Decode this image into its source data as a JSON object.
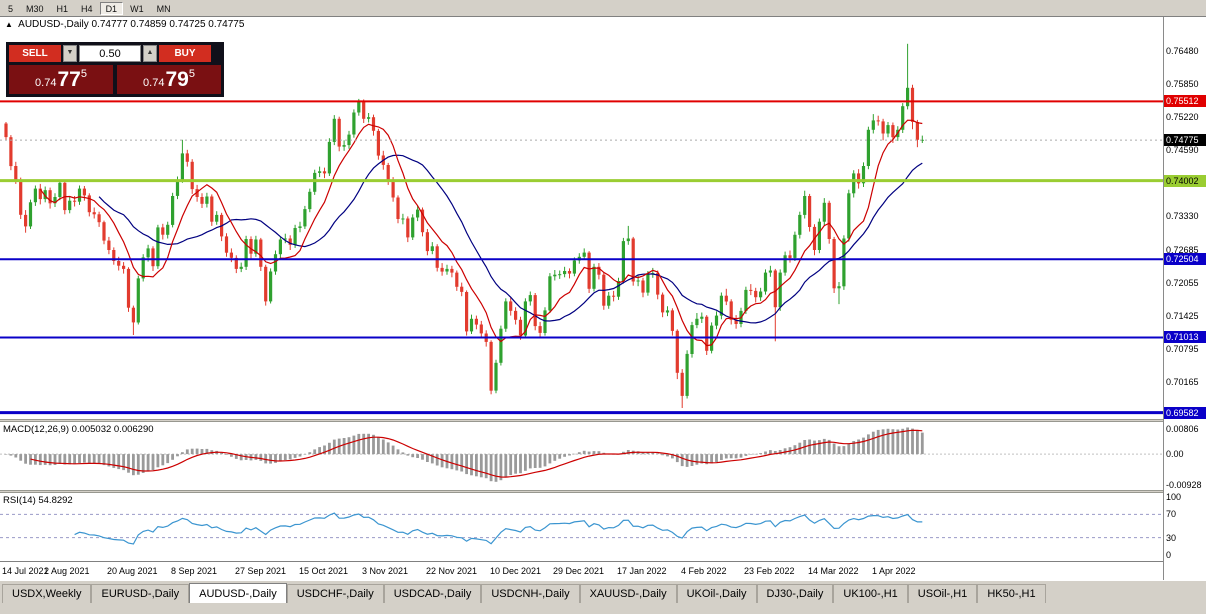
{
  "toolbar": {
    "timeframes": [
      {
        "label": "5",
        "active": false
      },
      {
        "label": "M30",
        "active": false
      },
      {
        "label": "H1",
        "active": false
      },
      {
        "label": "H4",
        "active": false
      },
      {
        "label": "D1",
        "active": true
      },
      {
        "label": "W1",
        "active": false
      },
      {
        "label": "MN",
        "active": false
      }
    ]
  },
  "trade_panel": {
    "sell_label": "SELL",
    "buy_label": "BUY",
    "volume": "0.50",
    "sell_price": {
      "prefix": "0.74",
      "big": "77",
      "sup": "5"
    },
    "buy_price": {
      "prefix": "0.74",
      "big": "79",
      "sup": "5"
    }
  },
  "colors": {
    "up": "#2fa12f",
    "down": "#e23b2e",
    "ma_fast": "#cc0000",
    "ma_slow": "#000080",
    "macd_hist": "#9a9a9a",
    "macd_signal": "#cc0000",
    "rsi": "#3b95d0",
    "level_dash": "#9a9ac8",
    "grid_dash": "#c0c0c0",
    "bid_line": "#aaaaaa"
  },
  "chart_data": {
    "type": "candlestick",
    "symbol_title": "AUDUSD-,Daily",
    "ohlc_header": "0.74777 0.74859 0.74725 0.74775",
    "scale": 10000,
    "ylim": [
      0.6946,
      0.7712
    ],
    "axis_ticks": [
      "0.76480",
      "0.75850",
      "0.75220",
      "0.74590",
      "0.73330",
      "0.72685",
      "0.72055",
      "0.71425",
      "0.70795",
      "0.70165"
    ],
    "hlines": [
      {
        "price": 0.75512,
        "label": "0.75512",
        "color": "#e00000",
        "width": 2,
        "text": "#ffffff"
      },
      {
        "price": 0.74002,
        "label": "0.74002",
        "color": "#9acd32",
        "width": 3,
        "text": "#000000"
      },
      {
        "price": 0.72504,
        "label": "0.72504",
        "color": "#0a00c8",
        "width": 2,
        "text": "#ffffff"
      },
      {
        "price": 0.71013,
        "label": "0.71013",
        "color": "#0a00c8",
        "width": 2,
        "text": "#ffffff"
      },
      {
        "price": 0.69582,
        "label": "0.69582",
        "color": "#0a00c8",
        "width": 3,
        "text": "#ffffff"
      }
    ],
    "current_price": {
      "price": 0.74775,
      "label": "0.74775"
    },
    "x_axis": {
      "labels": [
        "14 Jul 2021",
        "2 Aug 2021",
        "20 Aug 2021",
        "8 Sep 2021",
        "27 Sep 2021",
        "15 Oct 2021",
        "3 Nov 2021",
        "22 Nov 2021",
        "10 Dec 2021",
        "29 Dec 2021",
        "17 Jan 2022",
        "4 Feb 2022",
        "23 Feb 2022",
        "14 Mar 2022",
        "1 Apr 2022"
      ],
      "indices": [
        0,
        13,
        26,
        39,
        52,
        65,
        78,
        91,
        104,
        117,
        130,
        143,
        156,
        169,
        182
      ]
    },
    "ma": {
      "fast_period": 8,
      "slow_period": 20
    },
    "macd": {
      "label": "MACD(12,26,9) 0.005032 0.006290",
      "params": [
        12,
        26,
        9
      ],
      "axis": [
        "0.00806",
        "0.00",
        "-0.00928"
      ],
      "ylim": [
        -0.0106,
        0.0095
      ]
    },
    "rsi": {
      "label": "RSI(14) 54.8292",
      "period": 14,
      "axis": [
        "100",
        "70",
        "30",
        "0"
      ],
      "levels": [
        70,
        30
      ]
    },
    "candles": [
      [
        7509,
        7512,
        7478,
        7483
      ],
      [
        7483,
        7487,
        7420,
        7428
      ],
      [
        7428,
        7436,
        7394,
        7401
      ],
      [
        7401,
        7406,
        7327,
        7335
      ],
      [
        7335,
        7344,
        7301,
        7313
      ],
      [
        7313,
        7364,
        7308,
        7359
      ],
      [
        7359,
        7391,
        7352,
        7385
      ],
      [
        7385,
        7394,
        7355,
        7365
      ],
      [
        7365,
        7389,
        7359,
        7382
      ],
      [
        7382,
        7387,
        7347,
        7357
      ],
      [
        7357,
        7376,
        7350,
        7369
      ],
      [
        7369,
        7402,
        7363,
        7396
      ],
      [
        7396,
        7399,
        7336,
        7344
      ],
      [
        7344,
        7369,
        7338,
        7362
      ],
      [
        7362,
        7371,
        7351,
        7360
      ],
      [
        7360,
        7391,
        7354,
        7385
      ],
      [
        7385,
        7390,
        7362,
        7372
      ],
      [
        7372,
        7376,
        7332,
        7340
      ],
      [
        7340,
        7349,
        7328,
        7336
      ],
      [
        7336,
        7341,
        7312,
        7321
      ],
      [
        7321,
        7324,
        7279,
        7286
      ],
      [
        7286,
        7293,
        7260,
        7268
      ],
      [
        7268,
        7273,
        7240,
        7247
      ],
      [
        7247,
        7255,
        7229,
        7238
      ],
      [
        7238,
        7245,
        7223,
        7232
      ],
      [
        7232,
        7235,
        7150,
        7158
      ],
      [
        7158,
        7162,
        7106,
        7130
      ],
      [
        7130,
        7219,
        7126,
        7214
      ],
      [
        7214,
        7260,
        7208,
        7254
      ],
      [
        7254,
        7278,
        7246,
        7271
      ],
      [
        7271,
        7275,
        7228,
        7237
      ],
      [
        7237,
        7316,
        7232,
        7311
      ],
      [
        7311,
        7318,
        7288,
        7297
      ],
      [
        7297,
        7322,
        7290,
        7316
      ],
      [
        7316,
        7377,
        7311,
        7371
      ],
      [
        7371,
        7408,
        7365,
        7401
      ],
      [
        7401,
        7478,
        7396,
        7452
      ],
      [
        7452,
        7459,
        7427,
        7436
      ],
      [
        7436,
        7441,
        7375,
        7384
      ],
      [
        7384,
        7392,
        7360,
        7369
      ],
      [
        7369,
        7376,
        7348,
        7356
      ],
      [
        7356,
        7377,
        7349,
        7370
      ],
      [
        7370,
        7374,
        7314,
        7322
      ],
      [
        7322,
        7342,
        7316,
        7335
      ],
      [
        7335,
        7339,
        7285,
        7294
      ],
      [
        7294,
        7300,
        7255,
        7263
      ],
      [
        7263,
        7271,
        7245,
        7253
      ],
      [
        7253,
        7258,
        7224,
        7232
      ],
      [
        7232,
        7244,
        7226,
        7236
      ],
      [
        7236,
        7295,
        7230,
        7289
      ],
      [
        7289,
        7294,
        7252,
        7261
      ],
      [
        7261,
        7295,
        7255,
        7288
      ],
      [
        7288,
        7291,
        7228,
        7236
      ],
      [
        7236,
        7240,
        7162,
        7170
      ],
      [
        7170,
        7233,
        7166,
        7227
      ],
      [
        7227,
        7267,
        7221,
        7260
      ],
      [
        7260,
        7294,
        7253,
        7288
      ],
      [
        7288,
        7299,
        7281,
        7290
      ],
      [
        7290,
        7296,
        7268,
        7278
      ],
      [
        7278,
        7316,
        7272,
        7310
      ],
      [
        7310,
        7322,
        7302,
        7313
      ],
      [
        7313,
        7352,
        7308,
        7346
      ],
      [
        7346,
        7385,
        7340,
        7379
      ],
      [
        7379,
        7421,
        7373,
        7415
      ],
      [
        7415,
        7427,
        7407,
        7418
      ],
      [
        7418,
        7425,
        7405,
        7414
      ],
      [
        7414,
        7481,
        7409,
        7474
      ],
      [
        7474,
        7525,
        7468,
        7518
      ],
      [
        7518,
        7522,
        7456,
        7465
      ],
      [
        7465,
        7477,
        7457,
        7468
      ],
      [
        7468,
        7495,
        7461,
        7488
      ],
      [
        7488,
        7536,
        7482,
        7530
      ],
      [
        7530,
        7556,
        7524,
        7552
      ],
      [
        7552,
        7555,
        7510,
        7518
      ],
      [
        7518,
        7529,
        7511,
        7521
      ],
      [
        7521,
        7526,
        7486,
        7495
      ],
      [
        7495,
        7499,
        7440,
        7448
      ],
      [
        7448,
        7457,
        7421,
        7430
      ],
      [
        7430,
        7434,
        7392,
        7400
      ],
      [
        7400,
        7407,
        7360,
        7368
      ],
      [
        7368,
        7372,
        7319,
        7327
      ],
      [
        7327,
        7337,
        7317,
        7328
      ],
      [
        7328,
        7332,
        7283,
        7292
      ],
      [
        7292,
        7336,
        7287,
        7330
      ],
      [
        7330,
        7352,
        7323,
        7345
      ],
      [
        7345,
        7349,
        7294,
        7302
      ],
      [
        7302,
        7308,
        7258,
        7266
      ],
      [
        7266,
        7283,
        7260,
        7275
      ],
      [
        7275,
        7279,
        7227,
        7234
      ],
      [
        7234,
        7243,
        7219,
        7227
      ],
      [
        7227,
        7240,
        7221,
        7232
      ],
      [
        7232,
        7238,
        7216,
        7225
      ],
      [
        7225,
        7229,
        7190,
        7198
      ],
      [
        7198,
        7206,
        7180,
        7188
      ],
      [
        7188,
        7191,
        7105,
        7113
      ],
      [
        7113,
        7145,
        7108,
        7137
      ],
      [
        7137,
        7143,
        7117,
        7126
      ],
      [
        7126,
        7133,
        7101,
        7109
      ],
      [
        7109,
        7115,
        7084,
        7093
      ],
      [
        7093,
        7096,
        6993,
        7000
      ],
      [
        7000,
        7059,
        6995,
        7053
      ],
      [
        7053,
        7124,
        7048,
        7118
      ],
      [
        7118,
        7176,
        7112,
        7170
      ],
      [
        7170,
        7178,
        7143,
        7152
      ],
      [
        7152,
        7159,
        7126,
        7135
      ],
      [
        7135,
        7141,
        7097,
        7105
      ],
      [
        7105,
        7176,
        7100,
        7170
      ],
      [
        7170,
        7189,
        7162,
        7182
      ],
      [
        7182,
        7186,
        7115,
        7123
      ],
      [
        7123,
        7131,
        7102,
        7110
      ],
      [
        7110,
        7159,
        7105,
        7153
      ],
      [
        7153,
        7224,
        7148,
        7218
      ],
      [
        7218,
        7230,
        7210,
        7221
      ],
      [
        7221,
        7229,
        7213,
        7222
      ],
      [
        7222,
        7236,
        7216,
        7228
      ],
      [
        7228,
        7233,
        7214,
        7223
      ],
      [
        7223,
        7254,
        7218,
        7248
      ],
      [
        7248,
        7262,
        7242,
        7255
      ],
      [
        7255,
        7271,
        7249,
        7263
      ],
      [
        7263,
        7266,
        7186,
        7194
      ],
      [
        7194,
        7242,
        7189,
        7236
      ],
      [
        7236,
        7243,
        7212,
        7221
      ],
      [
        7221,
        7225,
        7154,
        7162
      ],
      [
        7162,
        7188,
        7156,
        7181
      ],
      [
        7181,
        7190,
        7170,
        7179
      ],
      [
        7179,
        7215,
        7173,
        7209
      ],
      [
        7209,
        7291,
        7204,
        7285
      ],
      [
        7285,
        7314,
        7278,
        7290
      ],
      [
        7290,
        7293,
        7200,
        7208
      ],
      [
        7208,
        7219,
        7199,
        7210
      ],
      [
        7210,
        7215,
        7178,
        7187
      ],
      [
        7187,
        7228,
        7181,
        7222
      ],
      [
        7222,
        7234,
        7215,
        7224
      ],
      [
        7224,
        7229,
        7174,
        7183
      ],
      [
        7183,
        7187,
        7140,
        7149
      ],
      [
        7149,
        7161,
        7142,
        7153
      ],
      [
        7153,
        7157,
        7105,
        7114
      ],
      [
        7114,
        7117,
        7022,
        7034
      ],
      [
        7034,
        7041,
        6967,
        6990
      ],
      [
        6990,
        7077,
        6985,
        7070
      ],
      [
        7070,
        7131,
        7063,
        7125
      ],
      [
        7125,
        7148,
        7119,
        7137
      ],
      [
        7137,
        7149,
        7129,
        7141
      ],
      [
        7141,
        7144,
        7068,
        7076
      ],
      [
        7076,
        7130,
        7071,
        7124
      ],
      [
        7124,
        7151,
        7117,
        7143
      ],
      [
        7143,
        7187,
        7136,
        7181
      ],
      [
        7181,
        7194,
        7163,
        7170
      ],
      [
        7170,
        7174,
        7126,
        7135
      ],
      [
        7135,
        7144,
        7118,
        7127
      ],
      [
        7127,
        7158,
        7121,
        7152
      ],
      [
        7152,
        7198,
        7146,
        7192
      ],
      [
        7192,
        7203,
        7182,
        7190
      ],
      [
        7190,
        7196,
        7168,
        7178
      ],
      [
        7178,
        7196,
        7171,
        7189
      ],
      [
        7189,
        7231,
        7183,
        7225
      ],
      [
        7225,
        7238,
        7217,
        7229
      ],
      [
        7229,
        7232,
        7094,
        7159
      ],
      [
        7159,
        7231,
        7152,
        7225
      ],
      [
        7225,
        7265,
        7219,
        7258
      ],
      [
        7258,
        7267,
        7244,
        7253
      ],
      [
        7253,
        7303,
        7247,
        7297
      ],
      [
        7297,
        7341,
        7290,
        7335
      ],
      [
        7335,
        7381,
        7328,
        7371
      ],
      [
        7371,
        7375,
        7303,
        7312
      ],
      [
        7312,
        7317,
        7258,
        7268
      ],
      [
        7268,
        7328,
        7262,
        7322
      ],
      [
        7322,
        7367,
        7315,
        7358
      ],
      [
        7358,
        7362,
        7280,
        7289
      ],
      [
        7289,
        7293,
        7186,
        7195
      ],
      [
        7195,
        7207,
        7165,
        7199
      ],
      [
        7199,
        7296,
        7192,
        7290
      ],
      [
        7290,
        7383,
        7284,
        7376
      ],
      [
        7376,
        7420,
        7368,
        7414
      ],
      [
        7414,
        7422,
        7385,
        7395
      ],
      [
        7395,
        7435,
        7388,
        7428
      ],
      [
        7428,
        7503,
        7422,
        7497
      ],
      [
        7497,
        7527,
        7490,
        7515
      ],
      [
        7515,
        7524,
        7505,
        7513
      ],
      [
        7513,
        7518,
        7477,
        7490
      ],
      [
        7490,
        7512,
        7483,
        7506
      ],
      [
        7506,
        7511,
        7472,
        7483
      ],
      [
        7483,
        7504,
        7476,
        7497
      ],
      [
        7497,
        7548,
        7491,
        7542
      ],
      [
        7542,
        7661,
        7536,
        7577
      ],
      [
        7577,
        7583,
        7498,
        7512
      ],
      [
        7512,
        7516,
        7464,
        7478
      ],
      [
        7478,
        7486,
        7472,
        7478
      ]
    ]
  },
  "tabs": [
    {
      "label": "USDX,Weekly",
      "active": false
    },
    {
      "label": "EURUSD-,Daily",
      "active": false
    },
    {
      "label": "AUDUSD-,Daily",
      "active": true
    },
    {
      "label": "USDCHF-,Daily",
      "active": false
    },
    {
      "label": "USDCAD-,Daily",
      "active": false
    },
    {
      "label": "USDCNH-,Daily",
      "active": false
    },
    {
      "label": "XAUUSD-,Daily",
      "active": false
    },
    {
      "label": "UKOil-,Daily",
      "active": false
    },
    {
      "label": "DJ30-,Daily",
      "active": false
    },
    {
      "label": "UK100-,H1",
      "active": false
    },
    {
      "label": "USOil-,H1",
      "active": false
    },
    {
      "label": "HK50-,H1",
      "active": false
    }
  ]
}
